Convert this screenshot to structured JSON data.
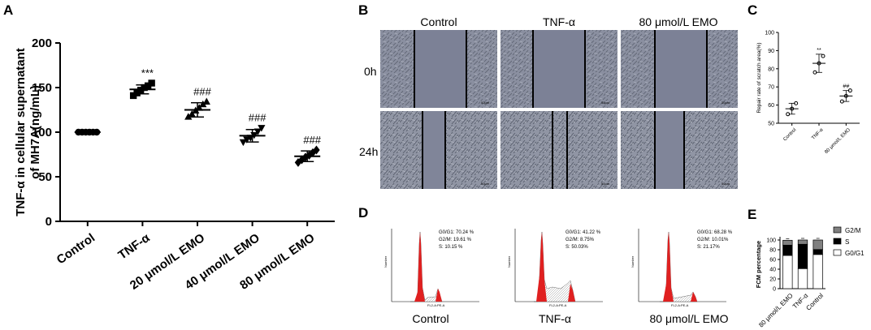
{
  "chart_data": [
    {
      "panel": "A",
      "type": "scatter",
      "ylabel_lines": [
        "TNF-α in cellular supernatant",
        "of MH7A(ng/mL)"
      ],
      "categories": [
        "Control",
        "TNF-α",
        "20 μmol/L EMO",
        "40 μmol/L EMO",
        "80 μmol/L EMO"
      ],
      "ylim": [
        0,
        200
      ],
      "yticks": [
        0,
        50,
        100,
        150,
        200
      ],
      "means": [
        100,
        148,
        125,
        96,
        73
      ],
      "sd": [
        1,
        5,
        8,
        7,
        6
      ],
      "points": [
        [
          100,
          100,
          100,
          100,
          100,
          100
        ],
        [
          141,
          144,
          147,
          150,
          152,
          155
        ],
        [
          117,
          120,
          124,
          127,
          131,
          134
        ],
        [
          89,
          92,
          94,
          97,
          101,
          105
        ],
        [
          66,
          69,
          72,
          74,
          77,
          80
        ]
      ],
      "annotations": [
        "",
        "***",
        "###",
        "###",
        "###"
      ]
    },
    {
      "panel": "C",
      "type": "scatter",
      "ylabel": "Repair rate of scratch area(%)",
      "categories": [
        "Control",
        "TNF-α",
        "80 μmol/L EMO"
      ],
      "ylim": [
        50,
        100
      ],
      "yticks": [
        50,
        60,
        70,
        80,
        90,
        100
      ],
      "means": [
        58,
        83,
        65
      ],
      "sd": [
        3,
        5,
        3
      ],
      "points": [
        [
          55,
          58,
          61
        ],
        [
          78,
          83,
          87
        ],
        [
          62,
          65,
          68
        ]
      ],
      "annotations": [
        "",
        "**",
        "##"
      ]
    },
    {
      "panel": "E",
      "type": "bar",
      "stacked": true,
      "ylabel": "FCM percentage",
      "categories": [
        "80 μmol/L EMO",
        "TNF-α",
        "Control"
      ],
      "ylim": [
        0,
        100
      ],
      "yticks": [
        0,
        20,
        40,
        60,
        80,
        100
      ],
      "series": [
        {
          "name": "G0/G1",
          "values": [
            68.28,
            41.22,
            70.24
          ],
          "color": "#ffffff"
        },
        {
          "name": "S",
          "values": [
            21.17,
            50.03,
            10.15
          ],
          "color": "#000000"
        },
        {
          "name": "G2/M",
          "values": [
            10.01,
            8.75,
            19.61
          ],
          "color": "#808080"
        }
      ],
      "legend": [
        "G2/M",
        "S",
        "G0/G1"
      ],
      "legend_position": "right"
    }
  ],
  "panel_b": {
    "letter": "B",
    "columns": [
      "Control",
      "TNF-α",
      "80 μmol/L EMO"
    ],
    "rows": [
      "0h",
      "24h"
    ],
    "scale_bar": "50μm"
  },
  "panel_d": {
    "letter": "D",
    "samples": [
      {
        "name": "Control",
        "g0g1": "G0/G1: 70.24 %",
        "g2m": "G2/M: 19.61 %",
        "s": "S: 10.15 %"
      },
      {
        "name": "TNF-α",
        "g0g1": "G0/G1: 41.22 %",
        "g2m": "G2/M: 8.75%",
        "s": "S: 50.03%"
      },
      {
        "name": "80 μmol/L EMO",
        "g0g1": "G0/G1: 68.28 %",
        "g2m": "G2/M: 10.01%",
        "s": "S: 21.17%"
      }
    ],
    "x_axis_label": "FL2-A:PE-A",
    "y_axis_label": "Number"
  },
  "colors": {
    "microscopy_bg": "#8a8fa0",
    "cell_texture": "#5c6270",
    "histogram_fill": "#e02020",
    "gray_bar": "#808080"
  }
}
